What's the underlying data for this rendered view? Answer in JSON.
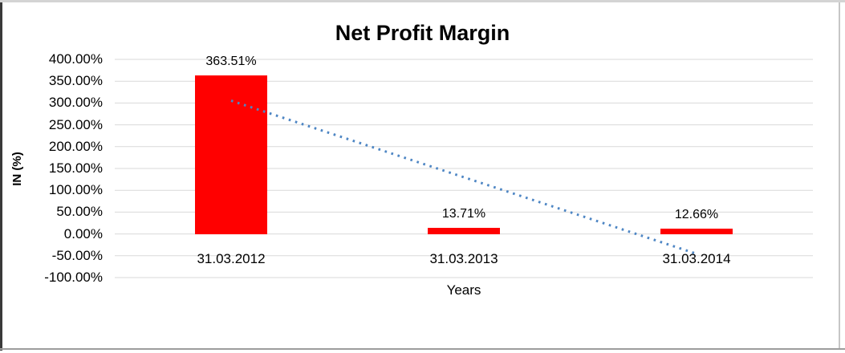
{
  "chart_data": {
    "type": "bar",
    "title": "Net Profit Margin",
    "xlabel": "Years",
    "ylabel": "IN (%)",
    "categories": [
      "31.03.2012",
      "31.03.2013",
      "31.03.2014"
    ],
    "series": [
      {
        "name": "Net Profit Margin",
        "values": [
          363.51,
          13.71,
          12.66
        ]
      }
    ],
    "data_labels": [
      "363.51%",
      "13.71%",
      "12.66%"
    ],
    "y_ticks": [
      "400.00%",
      "350.00%",
      "300.00%",
      "250.00%",
      "200.00%",
      "150.00%",
      "100.00%",
      "50.00%",
      "0.00%",
      "-50.00%",
      "-100.00%"
    ],
    "ylim": [
      -100,
      400
    ],
    "grid": true,
    "legend": "none",
    "bar_color": "#ff0000",
    "gridline_color": "#d9d9d9",
    "text_color": "#000000",
    "trendline": {
      "type": "linear",
      "style": "dotted",
      "color": "#4e86c4"
    }
  }
}
